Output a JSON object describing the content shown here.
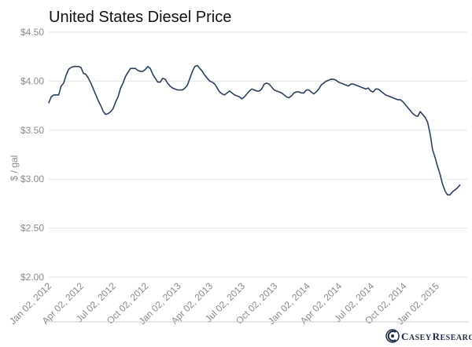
{
  "chart_data": {
    "type": "line",
    "title": "United States Diesel Price",
    "ylabel": "$ / gal",
    "xlabel": "",
    "ylim": [
      2.0,
      4.5
    ],
    "yticks": [
      2.0,
      2.5,
      3.0,
      3.5,
      4.0,
      4.5
    ],
    "ytick_labels": [
      "$2.00",
      "$2.50",
      "$3.00",
      "$3.50",
      "$4.00",
      "$4.50"
    ],
    "xlim": [
      "2012-01-02",
      "2015-03-30"
    ],
    "xticks": [
      "2012-01-02",
      "2012-04-02",
      "2012-07-02",
      "2012-10-02",
      "2013-01-02",
      "2013-04-02",
      "2013-07-02",
      "2013-10-02",
      "2014-01-02",
      "2014-04-02",
      "2014-07-02",
      "2014-10-02",
      "2015-01-02"
    ],
    "xtick_labels": [
      "Jan 02, 2012",
      "Apr 02, 2012",
      "Jul 02, 2012",
      "Oct 02, 2012",
      "Jan 02, 2013",
      "Apr 02, 2013",
      "Jul 02, 2013",
      "Oct 02, 2013",
      "Jan 02, 2014",
      "Apr 02, 2014",
      "Jul 02, 2014",
      "Oct 02, 2014",
      "Jan 02, 2015"
    ],
    "grid": true,
    "series": [
      {
        "name": "",
        "color": "#2b3f5f",
        "points": [
          [
            "2012-01-02",
            3.78
          ],
          [
            "2012-01-09",
            3.84
          ],
          [
            "2012-01-16",
            3.86
          ],
          [
            "2012-01-23",
            3.86
          ],
          [
            "2012-01-30",
            3.86
          ],
          [
            "2012-02-06",
            3.95
          ],
          [
            "2012-02-13",
            3.98
          ],
          [
            "2012-02-20",
            4.06
          ],
          [
            "2012-02-27",
            4.12
          ],
          [
            "2012-03-05",
            4.14
          ],
          [
            "2012-03-12",
            4.15
          ],
          [
            "2012-03-19",
            4.15
          ],
          [
            "2012-03-26",
            4.15
          ],
          [
            "2012-04-02",
            4.14
          ],
          [
            "2012-04-09",
            4.08
          ],
          [
            "2012-04-16",
            4.07
          ],
          [
            "2012-04-23",
            4.03
          ],
          [
            "2012-04-30",
            3.98
          ],
          [
            "2012-05-07",
            3.92
          ],
          [
            "2012-05-14",
            3.86
          ],
          [
            "2012-05-21",
            3.8
          ],
          [
            "2012-05-28",
            3.75
          ],
          [
            "2012-06-04",
            3.69
          ],
          [
            "2012-06-11",
            3.66
          ],
          [
            "2012-06-18",
            3.67
          ],
          [
            "2012-06-25",
            3.69
          ],
          [
            "2012-07-02",
            3.72
          ],
          [
            "2012-07-09",
            3.79
          ],
          [
            "2012-07-16",
            3.84
          ],
          [
            "2012-07-23",
            3.93
          ],
          [
            "2012-07-30",
            3.98
          ],
          [
            "2012-08-06",
            4.05
          ],
          [
            "2012-08-13",
            4.09
          ],
          [
            "2012-08-20",
            4.13
          ],
          [
            "2012-08-27",
            4.13
          ],
          [
            "2012-09-03",
            4.13
          ],
          [
            "2012-09-10",
            4.11
          ],
          [
            "2012-09-17",
            4.1
          ],
          [
            "2012-09-24",
            4.1
          ],
          [
            "2012-10-01",
            4.12
          ],
          [
            "2012-10-08",
            4.15
          ],
          [
            "2012-10-15",
            4.13
          ],
          [
            "2012-10-22",
            4.07
          ],
          [
            "2012-10-29",
            4.03
          ],
          [
            "2012-11-05",
            3.99
          ],
          [
            "2012-11-12",
            3.99
          ],
          [
            "2012-11-19",
            4.03
          ],
          [
            "2012-11-26",
            4.02
          ],
          [
            "2012-12-03",
            3.98
          ],
          [
            "2012-12-10",
            3.95
          ],
          [
            "2012-12-17",
            3.93
          ],
          [
            "2012-12-24",
            3.92
          ],
          [
            "2012-12-31",
            3.91
          ],
          [
            "2013-01-07",
            3.91
          ],
          [
            "2013-01-14",
            3.91
          ],
          [
            "2013-01-21",
            3.93
          ],
          [
            "2013-01-28",
            3.96
          ],
          [
            "2013-02-04",
            4.03
          ],
          [
            "2013-02-11",
            4.1
          ],
          [
            "2013-02-18",
            4.15
          ],
          [
            "2013-02-25",
            4.16
          ],
          [
            "2013-03-04",
            4.13
          ],
          [
            "2013-03-11",
            4.1
          ],
          [
            "2013-03-18",
            4.06
          ],
          [
            "2013-03-25",
            4.03
          ],
          [
            "2013-04-01",
            4.0
          ],
          [
            "2013-04-08",
            3.99
          ],
          [
            "2013-04-15",
            3.97
          ],
          [
            "2013-04-22",
            3.93
          ],
          [
            "2013-04-29",
            3.89
          ],
          [
            "2013-05-06",
            3.87
          ],
          [
            "2013-05-13",
            3.86
          ],
          [
            "2013-05-20",
            3.88
          ],
          [
            "2013-05-27",
            3.9
          ],
          [
            "2013-06-03",
            3.88
          ],
          [
            "2013-06-10",
            3.86
          ],
          [
            "2013-06-17",
            3.85
          ],
          [
            "2013-06-24",
            3.84
          ],
          [
            "2013-07-01",
            3.82
          ],
          [
            "2013-07-08",
            3.84
          ],
          [
            "2013-07-15",
            3.87
          ],
          [
            "2013-07-22",
            3.9
          ],
          [
            "2013-07-29",
            3.92
          ],
          [
            "2013-08-05",
            3.91
          ],
          [
            "2013-08-12",
            3.9
          ],
          [
            "2013-08-19",
            3.9
          ],
          [
            "2013-08-26",
            3.92
          ],
          [
            "2013-09-02",
            3.97
          ],
          [
            "2013-09-09",
            3.98
          ],
          [
            "2013-09-16",
            3.97
          ],
          [
            "2013-09-23",
            3.94
          ],
          [
            "2013-09-30",
            3.91
          ],
          [
            "2013-10-07",
            3.9
          ],
          [
            "2013-10-14",
            3.89
          ],
          [
            "2013-10-21",
            3.88
          ],
          [
            "2013-10-28",
            3.86
          ],
          [
            "2013-11-04",
            3.84
          ],
          [
            "2013-11-11",
            3.83
          ],
          [
            "2013-11-18",
            3.85
          ],
          [
            "2013-11-25",
            3.88
          ],
          [
            "2013-12-02",
            3.89
          ],
          [
            "2013-12-09",
            3.89
          ],
          [
            "2013-12-16",
            3.88
          ],
          [
            "2013-12-23",
            3.88
          ],
          [
            "2013-12-30",
            3.91
          ],
          [
            "2014-01-06",
            3.91
          ],
          [
            "2014-01-13",
            3.89
          ],
          [
            "2014-01-20",
            3.87
          ],
          [
            "2014-01-27",
            3.89
          ],
          [
            "2014-02-03",
            3.92
          ],
          [
            "2014-02-10",
            3.96
          ],
          [
            "2014-02-17",
            3.98
          ],
          [
            "2014-02-24",
            4.0
          ],
          [
            "2014-03-03",
            4.01
          ],
          [
            "2014-03-10",
            4.02
          ],
          [
            "2014-03-17",
            4.02
          ],
          [
            "2014-03-24",
            4.01
          ],
          [
            "2014-03-31",
            3.99
          ],
          [
            "2014-04-07",
            3.98
          ],
          [
            "2014-04-14",
            3.97
          ],
          [
            "2014-04-21",
            3.96
          ],
          [
            "2014-04-28",
            3.95
          ],
          [
            "2014-05-05",
            3.97
          ],
          [
            "2014-05-12",
            3.97
          ],
          [
            "2014-05-19",
            3.96
          ],
          [
            "2014-05-26",
            3.95
          ],
          [
            "2014-06-02",
            3.94
          ],
          [
            "2014-06-09",
            3.93
          ],
          [
            "2014-06-16",
            3.92
          ],
          [
            "2014-06-23",
            3.93
          ],
          [
            "2014-06-30",
            3.9
          ],
          [
            "2014-07-07",
            3.89
          ],
          [
            "2014-07-14",
            3.92
          ],
          [
            "2014-07-21",
            3.92
          ],
          [
            "2014-07-28",
            3.9
          ],
          [
            "2014-08-04",
            3.88
          ],
          [
            "2014-08-11",
            3.86
          ],
          [
            "2014-08-18",
            3.85
          ],
          [
            "2014-08-25",
            3.84
          ],
          [
            "2014-09-01",
            3.83
          ],
          [
            "2014-09-08",
            3.82
          ],
          [
            "2014-09-15",
            3.81
          ],
          [
            "2014-09-22",
            3.81
          ],
          [
            "2014-09-29",
            3.79
          ],
          [
            "2014-10-06",
            3.76
          ],
          [
            "2014-10-13",
            3.73
          ],
          [
            "2014-10-20",
            3.7
          ],
          [
            "2014-10-27",
            3.67
          ],
          [
            "2014-11-03",
            3.65
          ],
          [
            "2014-11-10",
            3.64
          ],
          [
            "2014-11-17",
            3.69
          ],
          [
            "2014-11-24",
            3.66
          ],
          [
            "2014-12-01",
            3.63
          ],
          [
            "2014-12-08",
            3.58
          ],
          [
            "2014-12-15",
            3.46
          ],
          [
            "2014-12-22",
            3.3
          ],
          [
            "2014-12-29",
            3.22
          ],
          [
            "2015-01-05",
            3.13
          ],
          [
            "2015-01-12",
            3.05
          ],
          [
            "2015-01-19",
            2.95
          ],
          [
            "2015-01-26",
            2.88
          ],
          [
            "2015-02-02",
            2.84
          ],
          [
            "2015-02-09",
            2.84
          ],
          [
            "2015-02-16",
            2.87
          ],
          [
            "2015-02-23",
            2.89
          ],
          [
            "2015-03-02",
            2.91
          ],
          [
            "2015-03-09",
            2.94
          ]
        ]
      }
    ]
  },
  "footer": {
    "brand_c": "C",
    "brand_word1": "ASEY",
    "brand_r": "R",
    "brand_word2": "ESEARCH"
  },
  "colors": {
    "line": "#2b3f5f",
    "grid": "#e6e6e6",
    "tick_text": "#8a8a8a",
    "brand": "#1e2a44"
  },
  "icons": {
    "logo": "casey-research-logo-icon"
  }
}
